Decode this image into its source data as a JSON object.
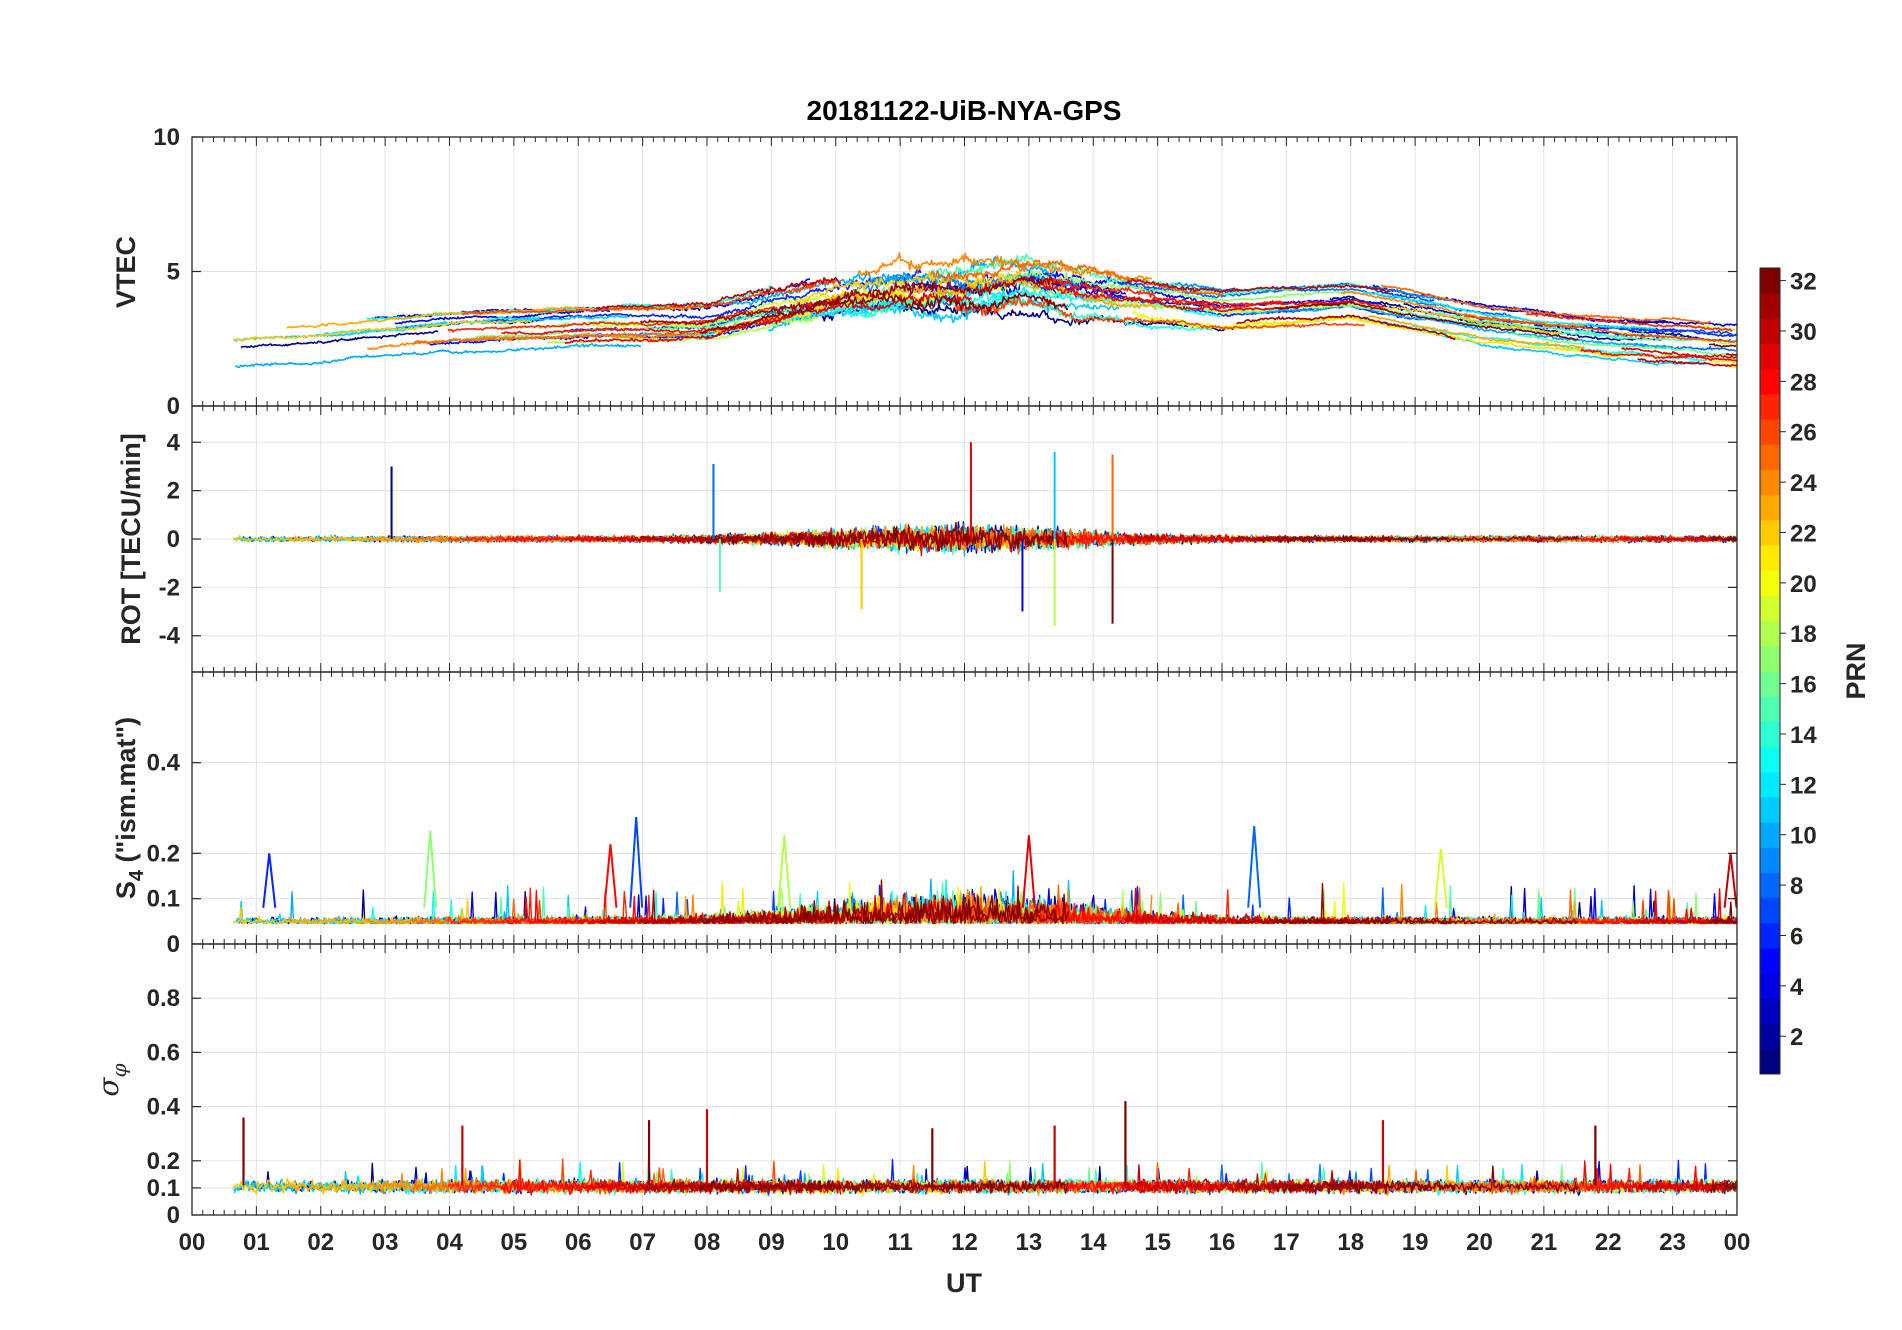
{
  "figure": {
    "title": "20181122-UiB-NYA-GPS",
    "xlabel": "UT",
    "x_tick_labels": [
      "00",
      "01",
      "02",
      "03",
      "04",
      "05",
      "06",
      "07",
      "08",
      "09",
      "10",
      "11",
      "12",
      "13",
      "14",
      "15",
      "16",
      "17",
      "18",
      "19",
      "20",
      "21",
      "22",
      "23",
      "00"
    ]
  },
  "colorbar": {
    "label": "PRN",
    "colormap": "jet",
    "range": [
      1,
      32
    ],
    "tick_labels": [
      "2",
      "4",
      "6",
      "8",
      "10",
      "12",
      "14",
      "16",
      "18",
      "20",
      "22",
      "24",
      "26",
      "28",
      "30",
      "32"
    ],
    "colors": [
      "#00008f",
      "#0000ff",
      "#0080ff",
      "#00ffff",
      "#80ff80",
      "#ffff00",
      "#ff8000",
      "#ff0000",
      "#800000"
    ]
  },
  "chart_data": [
    {
      "type": "line",
      "panel": "vtec",
      "xlabel": "UT",
      "ylabel": "VTEC",
      "xlim": [
        0,
        24
      ],
      "ylim": [
        0,
        10
      ],
      "y_ticks": [
        "0",
        "5",
        "10"
      ],
      "grid": true,
      "series_note_color": "colored by PRN (1-32)",
      "envelope": {
        "x": [
          0,
          2,
          4,
          6,
          8,
          10,
          11,
          12,
          13,
          14,
          16,
          18,
          20,
          22,
          24
        ],
        "y": [
          2.0,
          2.3,
          2.7,
          2.9,
          3.0,
          4.0,
          4.3,
          4.4,
          4.6,
          4.2,
          3.6,
          3.9,
          3.0,
          2.5,
          2.2
        ]
      }
    },
    {
      "type": "line",
      "panel": "rot",
      "xlabel": "UT",
      "ylabel": "ROT [TECU/min]",
      "xlim": [
        0,
        24
      ],
      "ylim": [
        -5.5,
        5.5
      ],
      "y_ticks": [
        "-4",
        "-2",
        "0",
        "2",
        "4"
      ],
      "grid": true,
      "spikes": [
        {
          "x": 3.1,
          "y": 3.0
        },
        {
          "x": 8.1,
          "y": 3.1
        },
        {
          "x": 8.2,
          "y": -2.2
        },
        {
          "x": 10.4,
          "y": -2.9
        },
        {
          "x": 12.1,
          "y": 4.0
        },
        {
          "x": 12.9,
          "y": -3.0
        },
        {
          "x": 13.4,
          "y": 3.6
        },
        {
          "x": 13.4,
          "y": -3.6
        },
        {
          "x": 14.3,
          "y": 3.5
        },
        {
          "x": 14.3,
          "y": -3.5
        }
      ]
    },
    {
      "type": "line",
      "panel": "s4",
      "xlabel": "UT",
      "ylabel": "S4 (\"ism.mat\")",
      "xlim": [
        0,
        24
      ],
      "ylim": [
        0,
        0.6
      ],
      "y_ticks": [
        "0",
        "0.1",
        "0.2",
        "0.4"
      ],
      "grid": true,
      "peaks": [
        {
          "x": 1.2,
          "y": 0.2
        },
        {
          "x": 3.7,
          "y": 0.25
        },
        {
          "x": 6.5,
          "y": 0.22
        },
        {
          "x": 6.9,
          "y": 0.28
        },
        {
          "x": 9.2,
          "y": 0.24
        },
        {
          "x": 13.0,
          "y": 0.24
        },
        {
          "x": 16.5,
          "y": 0.26
        },
        {
          "x": 19.4,
          "y": 0.21
        },
        {
          "x": 23.9,
          "y": 0.2
        }
      ]
    },
    {
      "type": "line",
      "panel": "sigma_phi",
      "xlabel": "UT",
      "ylabel": "σ_φ",
      "xlim": [
        0,
        24
      ],
      "ylim": [
        0,
        1
      ],
      "y_ticks": [
        "0",
        "0.1",
        "0.2",
        "0.4",
        "0.6",
        "0.8"
      ],
      "grid": true,
      "peaks": [
        {
          "x": 0.8,
          "y": 0.36
        },
        {
          "x": 4.2,
          "y": 0.33
        },
        {
          "x": 7.1,
          "y": 0.35
        },
        {
          "x": 8.0,
          "y": 0.39
        },
        {
          "x": 11.5,
          "y": 0.32
        },
        {
          "x": 13.4,
          "y": 0.33
        },
        {
          "x": 14.5,
          "y": 0.42
        },
        {
          "x": 18.5,
          "y": 0.35
        },
        {
          "x": 21.8,
          "y": 0.33
        }
      ]
    }
  ]
}
